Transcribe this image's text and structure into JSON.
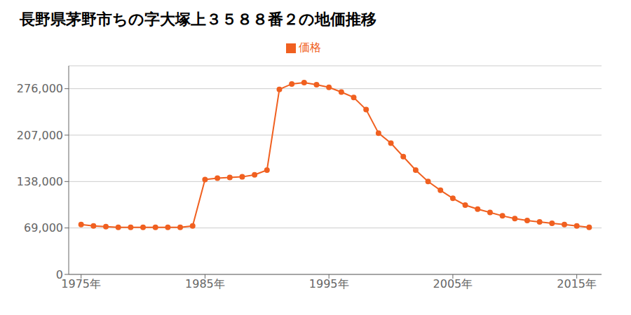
{
  "chart_data": {
    "type": "line",
    "title": "長野県茅野市ちの字大塚上３５８８番２の地価推移",
    "x": [
      1975,
      1976,
      1977,
      1978,
      1979,
      1980,
      1981,
      1982,
      1983,
      1984,
      1985,
      1986,
      1987,
      1988,
      1989,
      1990,
      1991,
      1992,
      1993,
      1994,
      1995,
      1996,
      1997,
      1998,
      1999,
      2000,
      2001,
      2002,
      2003,
      2004,
      2005,
      2006,
      2007,
      2008,
      2009,
      2010,
      2011,
      2012,
      2013,
      2014,
      2015,
      2016
    ],
    "series": [
      {
        "name": "価格",
        "color": "#f06020",
        "marker": "circle",
        "values": [
          74000,
          72000,
          71000,
          70000,
          70000,
          70000,
          70000,
          70000,
          70000,
          72000,
          141000,
          143000,
          144000,
          145000,
          148000,
          155000,
          275000,
          283000,
          285000,
          282000,
          278000,
          271000,
          263000,
          245000,
          210000,
          195000,
          175000,
          155000,
          138000,
          125000,
          113000,
          103000,
          97000,
          92000,
          87000,
          83000,
          80000,
          78000,
          76000,
          74000,
          72000,
          70000
        ]
      }
    ],
    "xlim": [
      1974,
      2017
    ],
    "xticks": [
      {
        "value": 1975,
        "label": "1975年"
      },
      {
        "value": 1985,
        "label": "1985年"
      },
      {
        "value": 1995,
        "label": "1995年"
      },
      {
        "value": 2005,
        "label": "2005年"
      },
      {
        "value": 2015,
        "label": "2015年"
      }
    ],
    "ylim": [
      0,
      310000
    ],
    "yticks": [
      0,
      {
        "value": 69000,
        "label": "69,000"
      },
      {
        "value": 138000,
        "label": "138,000"
      },
      {
        "value": 207000,
        "label": "207,000"
      },
      {
        "value": 276000,
        "label": "276,000"
      }
    ],
    "grid": true,
    "legend": "top"
  }
}
